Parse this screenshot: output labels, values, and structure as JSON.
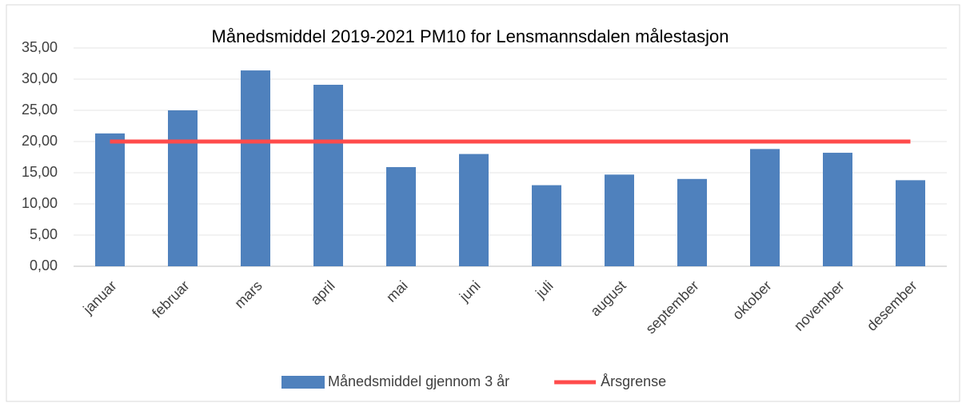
{
  "chart_data": {
    "type": "bar",
    "title": "Månedsmiddel 2019-2021 PM10 for Lensmannsdalen målestasjon",
    "categories": [
      "januar",
      "februar",
      "mars",
      "april",
      "mai",
      "juni",
      "juli",
      "august",
      "september",
      "oktober",
      "november",
      "desember"
    ],
    "series": [
      {
        "name": "Månedsmiddel gjennom 3 år",
        "color": "#4f81bd",
        "type": "bar",
        "values": [
          21.3,
          25.0,
          31.4,
          29.1,
          15.9,
          18.0,
          13.0,
          14.7,
          14.0,
          18.8,
          18.2,
          13.8
        ]
      },
      {
        "name": "Årsgrense",
        "color": "#ff4b4b",
        "type": "line",
        "values": [
          20,
          20,
          20,
          20,
          20,
          20,
          20,
          20,
          20,
          20,
          20,
          20
        ]
      }
    ],
    "ylim": [
      0,
      35
    ],
    "yticks": [
      {
        "value": 0,
        "label": "0,00"
      },
      {
        "value": 5,
        "label": "5,00"
      },
      {
        "value": 10,
        "label": "10,00"
      },
      {
        "value": 15,
        "label": "15,00"
      },
      {
        "value": 20,
        "label": "20,00"
      },
      {
        "value": 25,
        "label": "25,00"
      },
      {
        "value": 30,
        "label": "30,00"
      },
      {
        "value": 35,
        "label": "35,00"
      }
    ],
    "grid": true,
    "legend": "bottom"
  }
}
